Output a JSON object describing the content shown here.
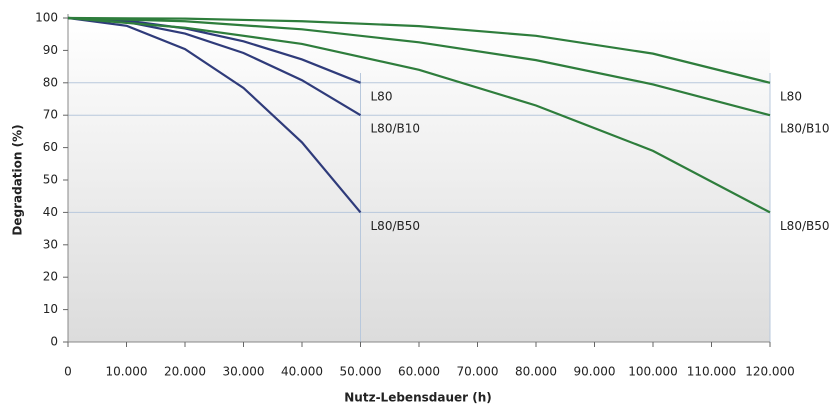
{
  "chart_data": {
    "type": "line",
    "xlabel": "Nutz-Lebensdauer (h)",
    "ylabel": "Degradation (%)",
    "xlim": [
      0,
      120000
    ],
    "ylim": [
      0,
      100
    ],
    "xticks": [
      0,
      {
        "value": 10000,
        "label": "10.000"
      },
      {
        "value": 20000,
        "label": "20.000"
      },
      {
        "value": 30000,
        "label": "30.000"
      },
      {
        "value": 40000,
        "label": "40.000"
      },
      {
        "value": 50000,
        "label": "50.000"
      },
      {
        "value": 60000,
        "label": "60.000"
      },
      {
        "value": 70000,
        "label": "70.000"
      },
      {
        "value": 80000,
        "label": "80.000"
      },
      {
        "value": 90000,
        "label": "90.000"
      },
      {
        "value": 100000,
        "label": "100.000"
      },
      {
        "value": 110000,
        "label": "110.000"
      },
      {
        "value": 120000,
        "label": "120.000"
      }
    ],
    "yticks": [
      0,
      10,
      20,
      30,
      40,
      50,
      60,
      70,
      80,
      90,
      100
    ],
    "hlines": [
      80,
      70,
      40
    ],
    "vlines": [
      50000,
      120000
    ],
    "series": [
      {
        "name": "L80",
        "color": "#2f3b7a",
        "x": [
          0,
          10000,
          20000,
          30000,
          40000,
          50000
        ],
        "values": [
          100,
          99.2,
          96.8,
          92.8,
          87.2,
          80
        ]
      },
      {
        "name": "L80/B10",
        "color": "#2f3b7a",
        "x": [
          0,
          10000,
          20000,
          30000,
          40000,
          50000
        ],
        "values": [
          100,
          98.8,
          95.2,
          89.2,
          80.8,
          70
        ]
      },
      {
        "name": "L80/B50",
        "color": "#2f3b7a",
        "x": [
          0,
          10000,
          20000,
          30000,
          40000,
          50000
        ],
        "values": [
          100,
          97.6,
          90.4,
          78.4,
          61.6,
          40
        ]
      },
      {
        "name": "L80",
        "color": "#2e7d3c",
        "x": [
          0,
          20000,
          40000,
          60000,
          80000,
          100000,
          120000
        ],
        "values": [
          100,
          99.8,
          99,
          97.5,
          94.5,
          89,
          80
        ]
      },
      {
        "name": "L80/B10",
        "color": "#2e7d3c",
        "x": [
          0,
          20000,
          40000,
          60000,
          80000,
          100000,
          120000
        ],
        "values": [
          100,
          99,
          96.5,
          92.5,
          87,
          79.5,
          70
        ]
      },
      {
        "name": "L80/B50",
        "color": "#2e7d3c",
        "x": [
          0,
          20000,
          40000,
          60000,
          80000,
          100000,
          120000
        ],
        "values": [
          100,
          97,
          92,
          84,
          73,
          59,
          40
        ]
      }
    ]
  }
}
